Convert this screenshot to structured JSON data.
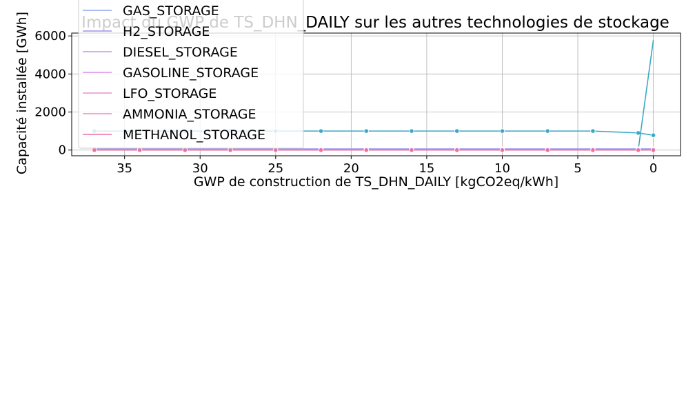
{
  "chart_data": {
    "type": "line",
    "title": "Impact du GWP de TS_DHN_DAILY sur les autres technologies de stockage",
    "xlabel": "GWP de construction de TS_DHN_DAILY [kgCO2eq/kWh]",
    "ylabel": "Capacité installée [GWh]",
    "x_inverted": true,
    "xlim": [
      38.5,
      -1.8
    ],
    "ylim": [
      -300,
      6150
    ],
    "xticks": [
      35,
      30,
      25,
      20,
      15,
      10,
      5,
      0
    ],
    "yticks": [
      0,
      2000,
      4000,
      6000
    ],
    "grid": true,
    "legend_position": "upper-left",
    "x": [
      37,
      34,
      31,
      28,
      25,
      22,
      19,
      16,
      13,
      10,
      7,
      4,
      1,
      0
    ],
    "series": [
      {
        "name": "",
        "color": "#3ba8c4",
        "markers": true,
        "values": [
          1000,
          1000,
          1000,
          1000,
          1000,
          1000,
          1000,
          1000,
          1000,
          1000,
          1000,
          1000,
          900,
          780
        ]
      },
      {
        "name": "",
        "color": "#3ba8c4",
        "markers": false,
        "values": [
          0,
          0,
          0,
          0,
          0,
          0,
          0,
          0,
          0,
          0,
          0,
          0,
          0,
          5780
        ]
      },
      {
        "name": "GAS_STORAGE",
        "color": "#8da8ef",
        "markers": true,
        "values": [
          60,
          60,
          60,
          60,
          60,
          60,
          60,
          60,
          60,
          60,
          60,
          60,
          60,
          60
        ]
      },
      {
        "name": "H2_STORAGE",
        "color": "#9f8ef2",
        "markers": true,
        "values": [
          50,
          50,
          50,
          50,
          50,
          50,
          50,
          50,
          50,
          50,
          50,
          50,
          50,
          50
        ]
      },
      {
        "name": "DIESEL_STORAGE",
        "color": "#c095ee",
        "markers": true,
        "values": [
          20,
          20,
          20,
          20,
          20,
          20,
          20,
          20,
          20,
          20,
          20,
          20,
          20,
          20
        ]
      },
      {
        "name": "GASOLINE_STORAGE",
        "color": "#d98ee8",
        "markers": true,
        "values": [
          15,
          15,
          15,
          15,
          15,
          15,
          15,
          15,
          15,
          15,
          15,
          15,
          15,
          15
        ]
      },
      {
        "name": "LFO_STORAGE",
        "color": "#ea8edb",
        "markers": true,
        "values": [
          10,
          10,
          10,
          10,
          10,
          10,
          10,
          10,
          10,
          10,
          10,
          10,
          10,
          10
        ]
      },
      {
        "name": "AMMONIA_STORAGE",
        "color": "#ef8cc3",
        "markers": true,
        "values": [
          5,
          5,
          5,
          5,
          5,
          5,
          5,
          5,
          5,
          5,
          5,
          5,
          5,
          5
        ]
      },
      {
        "name": "METHANOL_STORAGE",
        "color": "#ee6fa6",
        "markers": true,
        "values": [
          0,
          0,
          0,
          0,
          0,
          0,
          0,
          0,
          0,
          0,
          0,
          0,
          0,
          0
        ]
      }
    ]
  }
}
